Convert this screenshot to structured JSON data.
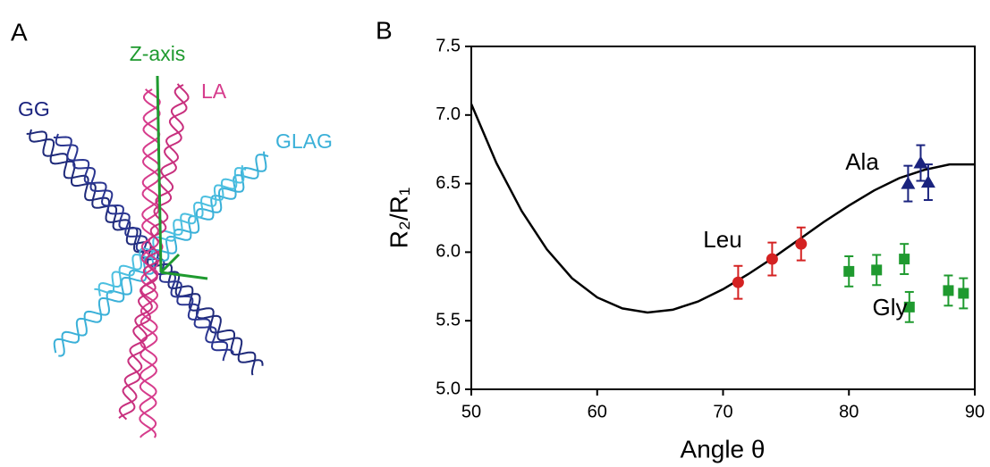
{
  "panel_a": {
    "label": "A",
    "labels": {
      "z_axis": "Z-axis",
      "gg": "GG",
      "la": "LA",
      "glag": "GLAG"
    }
  },
  "chart_data": {
    "type": "line",
    "panel_label": "B",
    "x_label": "Angle θ",
    "y_label": "R₂/R₁",
    "xlim": [
      50,
      90
    ],
    "ylim": [
      5.0,
      7.5
    ],
    "xticks": [
      50,
      60,
      70,
      80,
      90
    ],
    "yticks": [
      {
        "value": 5.0,
        "label": "5.0"
      },
      5.5,
      {
        "value": 6.0,
        "label": "6.0"
      },
      6.5,
      {
        "value": 7.0,
        "label": "7.0"
      },
      7.5
    ],
    "grid": false,
    "series": [
      {
        "color": "#000000",
        "marker": "none",
        "x": [
          50,
          52,
          54,
          56,
          58,
          60,
          62,
          64,
          66,
          68,
          70,
          72,
          74,
          76,
          78,
          80,
          82,
          84,
          86,
          88,
          90
        ],
        "values": [
          7.08,
          6.65,
          6.3,
          6.02,
          5.81,
          5.67,
          5.59,
          5.56,
          5.58,
          5.64,
          5.73,
          5.84,
          5.96,
          6.09,
          6.22,
          6.34,
          6.45,
          6.54,
          6.6,
          6.64,
          6.64
        ]
      },
      {
        "name": "Leu",
        "color": "#d42222",
        "marker": "circle",
        "x": [
          71.2,
          73.9,
          76.2
        ],
        "values": [
          5.78,
          5.95,
          6.06
        ],
        "errors": [
          0.12,
          0.12,
          0.12
        ]
      },
      {
        "name": "Ala",
        "color": "#1a237e",
        "marker": "triangle",
        "x": [
          84.7,
          85.7,
          86.3
        ],
        "values": [
          6.5,
          6.65,
          6.51
        ],
        "errors": [
          0.13,
          0.13,
          0.13
        ]
      },
      {
        "name": "Gly",
        "color": "#1f9a2f",
        "marker": "square",
        "x": [
          80.0,
          82.2,
          84.4,
          84.8,
          87.9,
          89.1
        ],
        "values": [
          5.86,
          5.87,
          5.95,
          5.6,
          5.72,
          5.7
        ],
        "errors": [
          0.11,
          0.11,
          0.11,
          0.11,
          0.11,
          0.11
        ]
      }
    ]
  }
}
